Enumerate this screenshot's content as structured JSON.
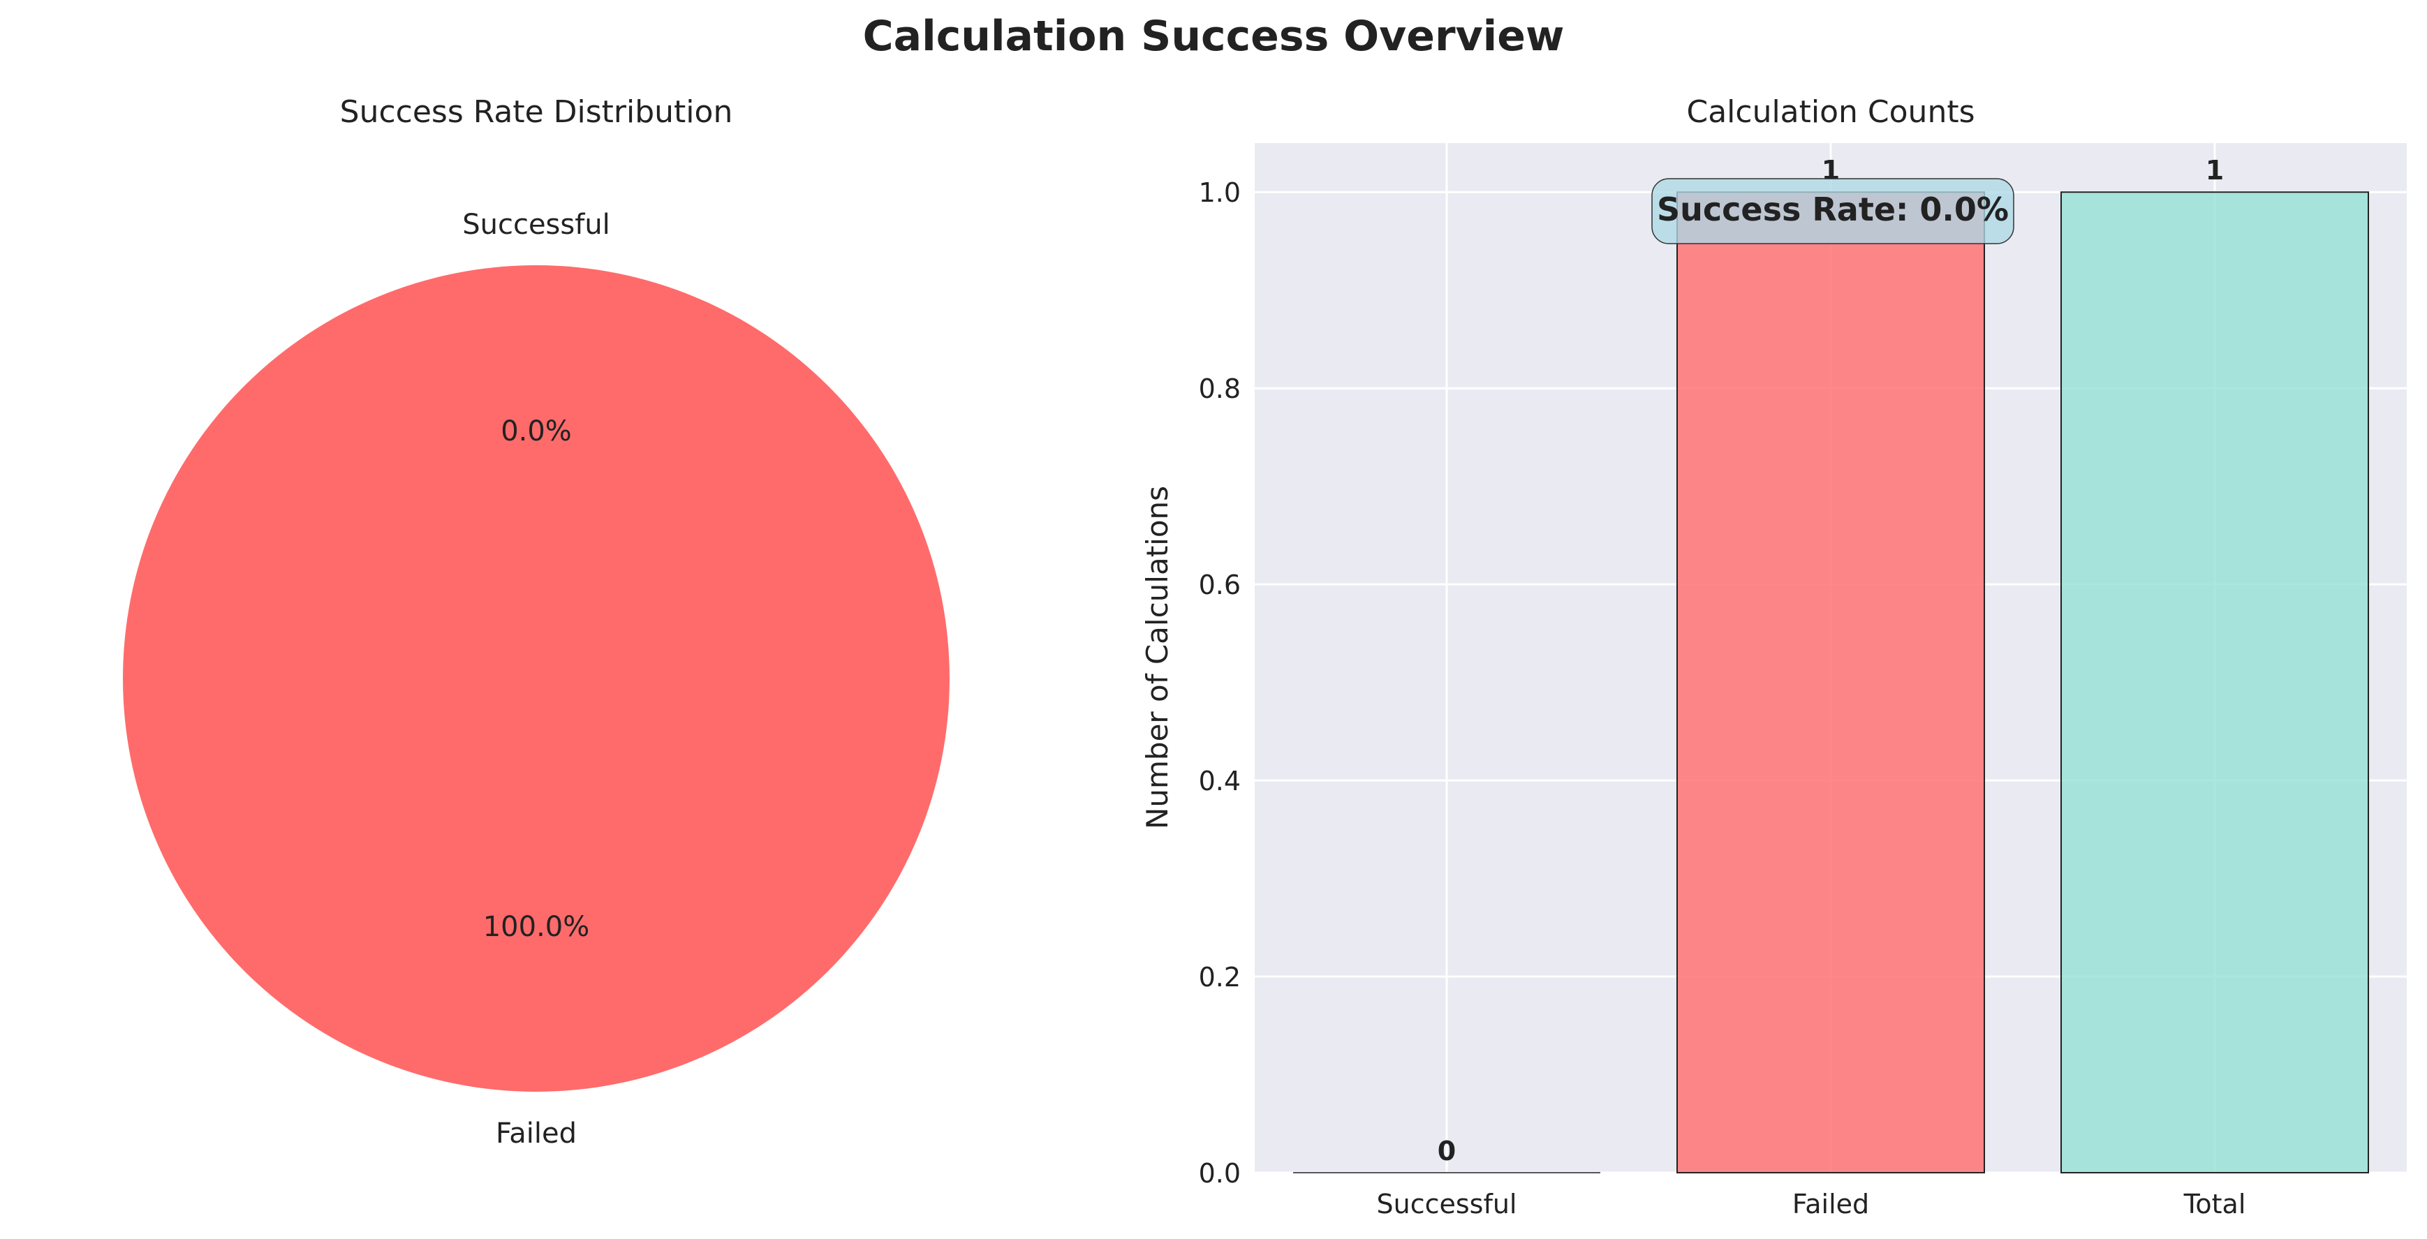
{
  "figure": {
    "title": "Calculation Success Overview"
  },
  "chart_data": [
    {
      "type": "pie",
      "title": "Success Rate Distribution",
      "labels": [
        "Successful",
        "Failed"
      ],
      "values": [
        0,
        1
      ],
      "percent_labels": [
        "0.0%",
        "100.0%"
      ],
      "colors": [
        "#4ECDC4",
        "#FF6B6B"
      ]
    },
    {
      "type": "bar",
      "title": "Calculation Counts",
      "ylabel": "Number of Calculations",
      "categories": [
        "Successful",
        "Failed",
        "Total"
      ],
      "values": [
        0,
        1,
        1
      ],
      "value_labels": [
        "0",
        "1",
        "1"
      ],
      "colors": [
        "#4ECDC4",
        "#FF6B6B",
        "#95E1D3"
      ],
      "ylim": [
        0,
        1.05
      ],
      "yticks": [
        0.0,
        0.2,
        0.4,
        0.6,
        0.8,
        1.0
      ],
      "ytick_labels": [
        "0.0",
        "0.2",
        "0.4",
        "0.6",
        "0.8",
        "1.0"
      ],
      "grid": true,
      "annotation": "Success Rate: 0.0%"
    }
  ]
}
